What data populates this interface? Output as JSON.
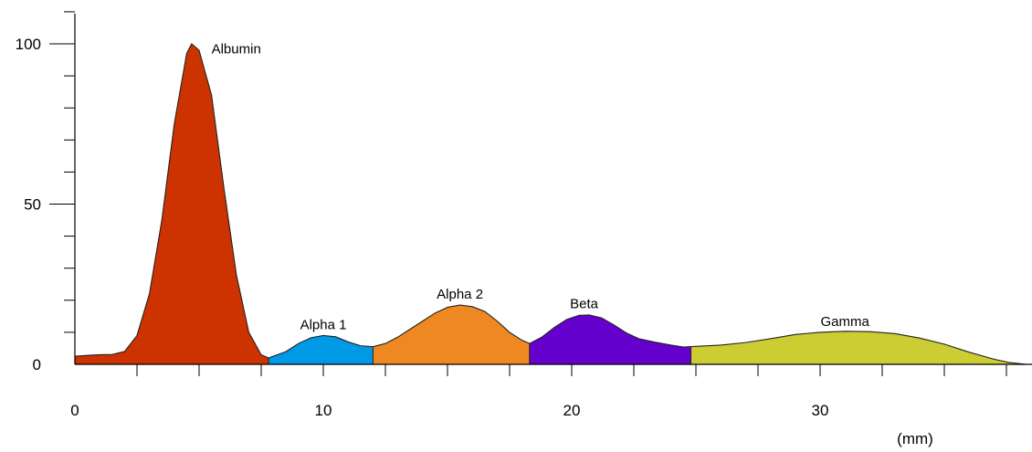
{
  "chart_data": {
    "type": "area",
    "title": "",
    "xlabel": "(mm)",
    "ylabel": "",
    "xlim": [
      0,
      38.5
    ],
    "ylim": [
      0,
      110
    ],
    "x_ticks": [
      0,
      10,
      20,
      30
    ],
    "x_tick_labels": [
      "0",
      "10",
      "20",
      "30"
    ],
    "x_minor_step": 2.5,
    "y_ticks": [
      0,
      50,
      100
    ],
    "y_tick_labels": [
      "0",
      "50",
      "100"
    ],
    "y_minor_step": 10,
    "grid": false,
    "legend": "none",
    "curve": [
      [
        0,
        2.5
      ],
      [
        0.5,
        2.8
      ],
      [
        1,
        3
      ],
      [
        1.5,
        3.1
      ],
      [
        2,
        4
      ],
      [
        2.5,
        9
      ],
      [
        3,
        22
      ],
      [
        3.5,
        45
      ],
      [
        4,
        75
      ],
      [
        4.5,
        97
      ],
      [
        4.7,
        100
      ],
      [
        5,
        98
      ],
      [
        5.5,
        84
      ],
      [
        6,
        55
      ],
      [
        6.5,
        28
      ],
      [
        7,
        10
      ],
      [
        7.5,
        3
      ],
      [
        7.8,
        2
      ],
      [
        8.5,
        4
      ],
      [
        9,
        6.5
      ],
      [
        9.5,
        8.3
      ],
      [
        10,
        9
      ],
      [
        10.5,
        8.6
      ],
      [
        11,
        7
      ],
      [
        11.5,
        5.8
      ],
      [
        12,
        5.5
      ],
      [
        12.5,
        6.5
      ],
      [
        13,
        8.5
      ],
      [
        13.5,
        11
      ],
      [
        14,
        13.5
      ],
      [
        14.5,
        16
      ],
      [
        15,
        17.8
      ],
      [
        15.5,
        18.5
      ],
      [
        16,
        18
      ],
      [
        16.5,
        16.5
      ],
      [
        17,
        13.5
      ],
      [
        17.5,
        10
      ],
      [
        18,
        7.5
      ],
      [
        18.3,
        6.5
      ],
      [
        18.8,
        8.5
      ],
      [
        19.3,
        11.5
      ],
      [
        19.8,
        14
      ],
      [
        20.3,
        15.3
      ],
      [
        20.7,
        15.4
      ],
      [
        21.2,
        14.5
      ],
      [
        21.7,
        12.3
      ],
      [
        22.2,
        9.8
      ],
      [
        22.7,
        8
      ],
      [
        23.3,
        7
      ],
      [
        24,
        6
      ],
      [
        24.5,
        5.4
      ],
      [
        25,
        5.6
      ],
      [
        26,
        6
      ],
      [
        27,
        6.8
      ],
      [
        28,
        8
      ],
      [
        29,
        9.3
      ],
      [
        30,
        10
      ],
      [
        31,
        10.3
      ],
      [
        32,
        10.2
      ],
      [
        33,
        9.6
      ],
      [
        34,
        8.2
      ],
      [
        35,
        6.3
      ],
      [
        36,
        3.8
      ],
      [
        37,
        1.6
      ],
      [
        37.6,
        0.6
      ],
      [
        38.3,
        0
      ]
    ],
    "series": [
      {
        "name": "Albumin",
        "x_range": [
          0,
          7.8
        ],
        "color": "#cc3300",
        "label_x": 5.5,
        "label_y": 97
      },
      {
        "name": "Alpha 1",
        "x_range": [
          7.8,
          12
        ],
        "color": "#0099e6",
        "label_x": 10,
        "label_y": 11
      },
      {
        "name": "Alpha 2",
        "x_range": [
          12,
          18.3
        ],
        "color": "#ee8822",
        "label_x": 15.5,
        "label_y": 20.5
      },
      {
        "name": "Beta",
        "x_range": [
          18.3,
          24.8
        ],
        "color": "#6600cc",
        "label_x": 20.5,
        "label_y": 17.5
      },
      {
        "name": "Gamma",
        "x_range": [
          24.8,
          38.3
        ],
        "color": "#cccc33",
        "label_x": 31,
        "label_y": 12
      }
    ]
  }
}
